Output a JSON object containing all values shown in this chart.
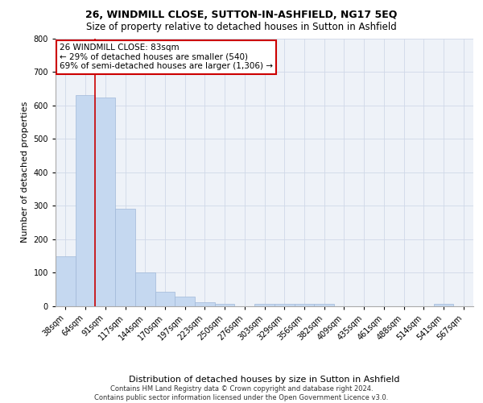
{
  "title1": "26, WINDMILL CLOSE, SUTTON-IN-ASHFIELD, NG17 5EQ",
  "title2": "Size of property relative to detached houses in Sutton in Ashfield",
  "xlabel": "Distribution of detached houses by size in Sutton in Ashfield",
  "ylabel": "Number of detached properties",
  "footnote1": "Contains HM Land Registry data © Crown copyright and database right 2024.",
  "footnote2": "Contains public sector information licensed under the Open Government Licence v3.0.",
  "categories": [
    "38sqm",
    "64sqm",
    "91sqm",
    "117sqm",
    "144sqm",
    "170sqm",
    "197sqm",
    "223sqm",
    "250sqm",
    "276sqm",
    "303sqm",
    "329sqm",
    "356sqm",
    "382sqm",
    "409sqm",
    "435sqm",
    "461sqm",
    "488sqm",
    "514sqm",
    "541sqm",
    "567sqm"
  ],
  "values": [
    150,
    630,
    623,
    290,
    101,
    44,
    30,
    12,
    8,
    0,
    8,
    8,
    8,
    8,
    0,
    0,
    0,
    0,
    0,
    8,
    0
  ],
  "bar_color": "#c5d8f0",
  "bar_edge_color": "#a0b8d8",
  "vline_x_index": 1.5,
  "vline_color": "#cc0000",
  "annotation_text": "26 WINDMILL CLOSE: 83sqm\n← 29% of detached houses are smaller (540)\n69% of semi-detached houses are larger (1,306) →",
  "annotation_box_color": "white",
  "annotation_box_edge": "#cc0000",
  "ylim": [
    0,
    800
  ],
  "yticks": [
    0,
    100,
    200,
    300,
    400,
    500,
    600,
    700,
    800
  ],
  "grid_color": "#d0d8e8",
  "background_color": "#eef2f8",
  "fig_background": "#ffffff",
  "title1_fontsize": 9,
  "title2_fontsize": 8.5,
  "xlabel_fontsize": 8,
  "ylabel_fontsize": 8,
  "tick_fontsize": 7,
  "annotation_fontsize": 7.5,
  "footnote_fontsize": 6
}
